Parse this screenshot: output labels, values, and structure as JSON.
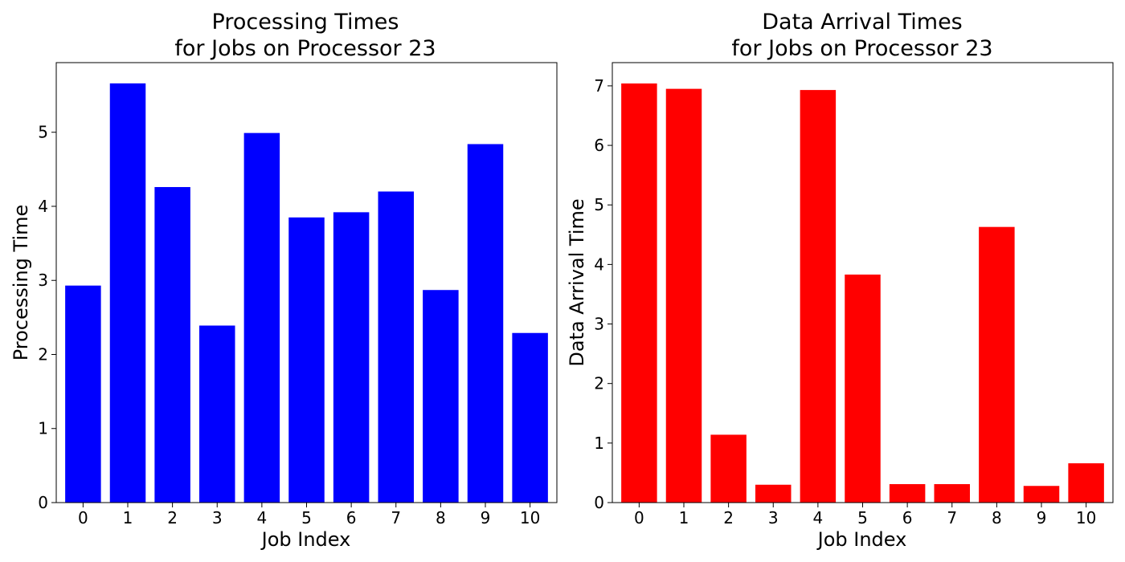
{
  "chart_data": [
    {
      "type": "bar",
      "title_line1": "Processing Times",
      "title_line2": "for Jobs on Processor 23",
      "xlabel": "Job Index",
      "ylabel": "Processing Time",
      "categories": [
        "0",
        "1",
        "2",
        "3",
        "4",
        "5",
        "6",
        "7",
        "8",
        "9",
        "10"
      ],
      "values": [
        2.93,
        5.66,
        4.26,
        2.39,
        4.99,
        3.85,
        3.92,
        4.2,
        2.87,
        4.84,
        2.29
      ],
      "ylim": [
        0,
        5.94
      ],
      "yticks": [
        0,
        1,
        2,
        3,
        4,
        5
      ],
      "color": "#0000ff",
      "grid": false
    },
    {
      "type": "bar",
      "title_line1": "Data Arrival Times",
      "title_line2": "for Jobs on Processor 23",
      "xlabel": "Job Index",
      "ylabel": "Data Arrival Time",
      "categories": [
        "0",
        "1",
        "2",
        "3",
        "4",
        "5",
        "6",
        "7",
        "8",
        "9",
        "10"
      ],
      "values": [
        7.04,
        6.95,
        1.14,
        0.3,
        6.93,
        3.83,
        0.31,
        0.31,
        4.63,
        0.28,
        0.66
      ],
      "ylim": [
        0,
        7.39
      ],
      "yticks": [
        0,
        1,
        2,
        3,
        4,
        5,
        6,
        7
      ],
      "color": "#ff0000",
      "grid": false
    }
  ]
}
